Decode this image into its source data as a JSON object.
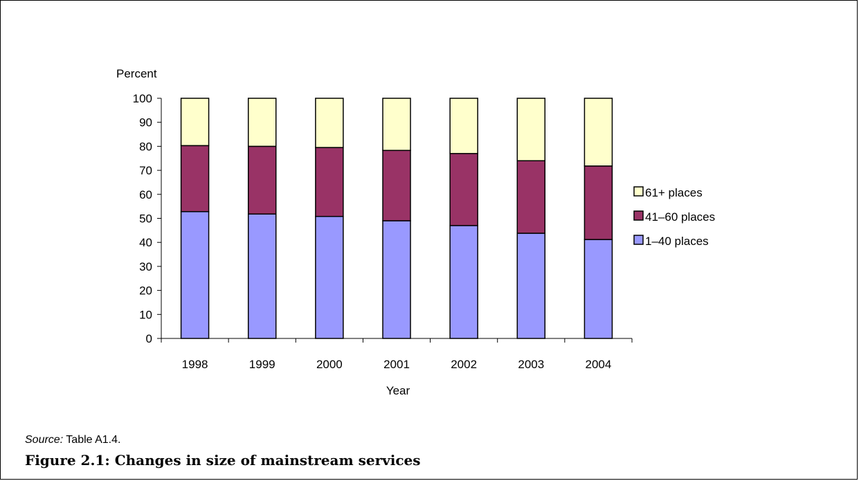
{
  "chart_data": {
    "type": "bar",
    "stacked": true,
    "categories": [
      "1998",
      "1999",
      "2000",
      "2001",
      "2002",
      "2003",
      "2004"
    ],
    "series": [
      {
        "name": "1–40 places",
        "color": "#9999ff",
        "values": [
          52.8,
          51.8,
          50.8,
          49.0,
          47.0,
          43.8,
          41.2
        ]
      },
      {
        "name": "41–60 places",
        "color": "#993366",
        "values": [
          27.5,
          28.2,
          28.7,
          29.3,
          30.0,
          30.2,
          30.6
        ]
      },
      {
        "name": "61+ places",
        "color": "#ffffcc",
        "values": [
          19.7,
          20.0,
          20.5,
          21.7,
          23.0,
          26.0,
          28.2
        ]
      }
    ],
    "ylabel": "Percent",
    "xlabel": "Year",
    "ylim": [
      0,
      100
    ],
    "yticks": [
      0,
      10,
      20,
      30,
      40,
      50,
      60,
      70,
      80,
      90,
      100
    ],
    "legend_order": [
      "61+ places",
      "41–60 places",
      "1–40 places"
    ],
    "legend_position": "right",
    "grid": false
  },
  "source": {
    "label": "Source:",
    "text": "Table A1.4."
  },
  "caption": "Figure 2.1: Changes in size of mainstream services"
}
